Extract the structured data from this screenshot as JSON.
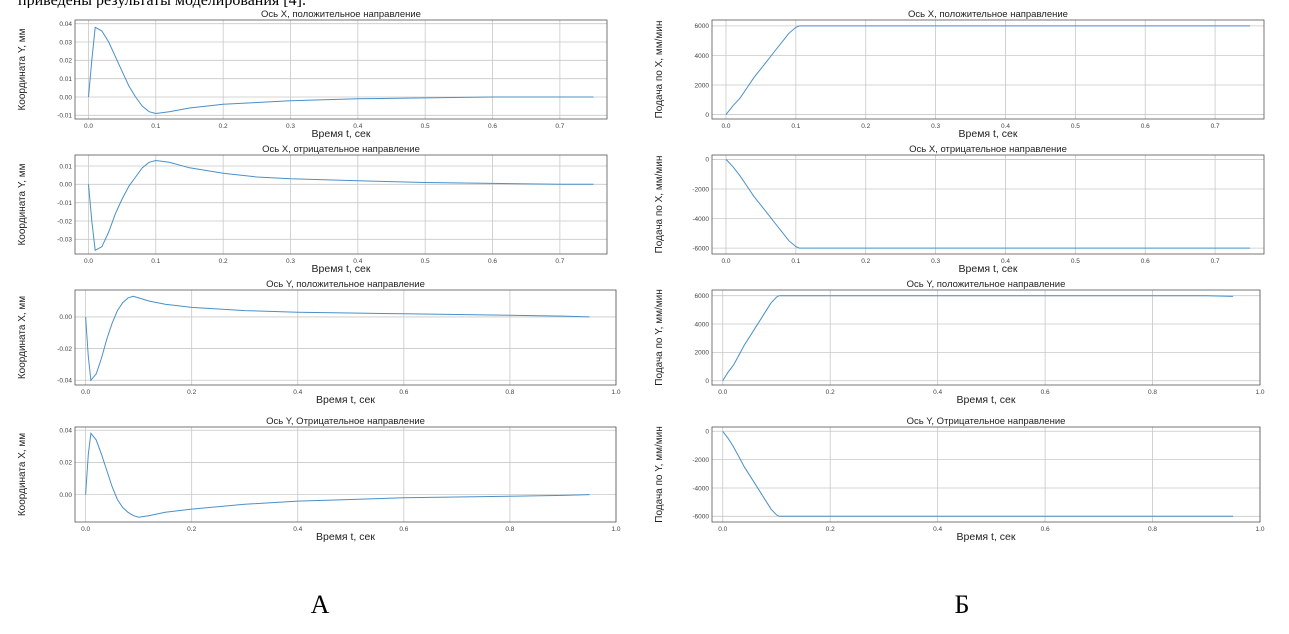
{
  "caption_text": "приведены результаты моделирования [4].",
  "panel_labels": [
    "А",
    "Б"
  ],
  "line_color": "#4a90c8",
  "chart_data": [
    {
      "type": "line",
      "panel": "А",
      "title": "Ось X, положительное направление",
      "xlabel": "Время t, сек",
      "ylabel": "Координата Y, мм",
      "xlim": [
        -0.02,
        0.77
      ],
      "ylim": [
        -0.012,
        0.042
      ],
      "xticks": [
        0.0,
        0.1,
        0.2,
        0.3,
        0.4,
        0.5,
        0.6,
        0.7
      ],
      "xtick_labels": [
        "0.0",
        "0.1",
        "0.2",
        "0.3",
        "0.4",
        "0.5",
        "0.6",
        "0.7"
      ],
      "yticks": [
        -0.01,
        0.0,
        0.01,
        0.02,
        0.03,
        0.04
      ],
      "ytick_labels": [
        "-0.01",
        "0.00",
        "0.01",
        "0.02",
        "0.03",
        "0.04"
      ],
      "grid": true,
      "series": [
        {
          "x": [
            0.0,
            0.005,
            0.01,
            0.02,
            0.03,
            0.04,
            0.05,
            0.06,
            0.07,
            0.08,
            0.09,
            0.1,
            0.12,
            0.15,
            0.2,
            0.25,
            0.3,
            0.4,
            0.5,
            0.6,
            0.7,
            0.75
          ],
          "y": [
            0.0,
            0.02,
            0.038,
            0.036,
            0.03,
            0.022,
            0.014,
            0.006,
            0.0,
            -0.005,
            -0.008,
            -0.009,
            -0.008,
            -0.006,
            -0.004,
            -0.003,
            -0.002,
            -0.001,
            -0.0005,
            0.0,
            0.0,
            0.0
          ]
        }
      ]
    },
    {
      "type": "line",
      "panel": "А",
      "title": "Ось X, отрицательное направление",
      "xlabel": "Время t, сек",
      "ylabel": "Координата Y, мм",
      "xlim": [
        -0.02,
        0.77
      ],
      "ylim": [
        -0.038,
        0.016
      ],
      "xticks": [
        0.0,
        0.1,
        0.2,
        0.3,
        0.4,
        0.5,
        0.6,
        0.7
      ],
      "xtick_labels": [
        "0.0",
        "0.1",
        "0.2",
        "0.3",
        "0.4",
        "0.5",
        "0.6",
        "0.7"
      ],
      "yticks": [
        -0.03,
        -0.02,
        -0.01,
        0.0,
        0.01
      ],
      "ytick_labels": [
        "-0.03",
        "-0.02",
        "-0.01",
        "0.00",
        "0.01"
      ],
      "grid": true,
      "series": [
        {
          "x": [
            0.0,
            0.005,
            0.01,
            0.02,
            0.03,
            0.04,
            0.05,
            0.06,
            0.07,
            0.08,
            0.09,
            0.1,
            0.12,
            0.15,
            0.2,
            0.25,
            0.3,
            0.4,
            0.5,
            0.6,
            0.7,
            0.75
          ],
          "y": [
            0.0,
            -0.02,
            -0.036,
            -0.034,
            -0.026,
            -0.016,
            -0.008,
            -0.001,
            0.004,
            0.009,
            0.012,
            0.013,
            0.012,
            0.009,
            0.006,
            0.004,
            0.003,
            0.002,
            0.001,
            0.0005,
            0.0,
            0.0
          ]
        }
      ]
    },
    {
      "type": "line",
      "panel": "А",
      "title": "Ось Y, положительное направление",
      "xlabel": "Время t, сек",
      "ylabel": "Координата X, мм",
      "xlim": [
        -0.02,
        1.0
      ],
      "ylim": [
        -0.043,
        0.017
      ],
      "xticks": [
        0.0,
        0.2,
        0.4,
        0.6,
        0.8,
        1.0
      ],
      "xtick_labels": [
        "0.0",
        "0.2",
        "0.4",
        "0.6",
        "0.8",
        "1.0"
      ],
      "yticks": [
        -0.04,
        -0.02,
        0.0
      ],
      "ytick_labels": [
        "-0.04",
        "-0.02",
        "0.00"
      ],
      "grid": true,
      "series": [
        {
          "x": [
            0.0,
            0.005,
            0.01,
            0.02,
            0.03,
            0.04,
            0.05,
            0.06,
            0.07,
            0.08,
            0.09,
            0.1,
            0.12,
            0.15,
            0.2,
            0.3,
            0.4,
            0.5,
            0.6,
            0.7,
            0.8,
            0.9,
            0.95
          ],
          "y": [
            0.0,
            -0.025,
            -0.04,
            -0.036,
            -0.026,
            -0.014,
            -0.004,
            0.004,
            0.009,
            0.012,
            0.013,
            0.012,
            0.01,
            0.008,
            0.006,
            0.004,
            0.003,
            0.0025,
            0.002,
            0.0015,
            0.001,
            0.0005,
            0.0
          ]
        }
      ]
    },
    {
      "type": "line",
      "panel": "А",
      "title": "Ось Y, Отрицательное направление",
      "xlabel": "Время t, сек",
      "ylabel": "Координата X, мм",
      "xlim": [
        -0.02,
        1.0
      ],
      "ylim": [
        -0.017,
        0.042
      ],
      "xticks": [
        0.0,
        0.2,
        0.4,
        0.6,
        0.8,
        1.0
      ],
      "xtick_labels": [
        "0.0",
        "0.2",
        "0.4",
        "0.6",
        "0.8",
        "1.0"
      ],
      "yticks": [
        0.0,
        0.02,
        0.04
      ],
      "ytick_labels": [
        "0.00",
        "0.02",
        "0.04"
      ],
      "grid": true,
      "series": [
        {
          "x": [
            0.0,
            0.005,
            0.01,
            0.02,
            0.03,
            0.04,
            0.05,
            0.06,
            0.07,
            0.08,
            0.09,
            0.1,
            0.12,
            0.15,
            0.2,
            0.3,
            0.4,
            0.5,
            0.6,
            0.7,
            0.8,
            0.9,
            0.95
          ],
          "y": [
            0.0,
            0.025,
            0.038,
            0.034,
            0.025,
            0.015,
            0.005,
            -0.003,
            -0.008,
            -0.011,
            -0.013,
            -0.014,
            -0.013,
            -0.011,
            -0.009,
            -0.006,
            -0.004,
            -0.003,
            -0.002,
            -0.0015,
            -0.001,
            -0.0005,
            0.0
          ]
        }
      ]
    },
    {
      "type": "line",
      "panel": "Б",
      "title": "Ось X, положительное направление",
      "xlabel": "Время t, сек",
      "ylabel": "Подача по X, мм/мин",
      "xlim": [
        -0.02,
        0.77
      ],
      "ylim": [
        -300,
        6400
      ],
      "xticks": [
        0.0,
        0.1,
        0.2,
        0.3,
        0.4,
        0.5,
        0.6,
        0.7
      ],
      "xtick_labels": [
        "0.0",
        "0.1",
        "0.2",
        "0.3",
        "0.4",
        "0.5",
        "0.6",
        "0.7"
      ],
      "yticks": [
        0,
        2000,
        4000,
        6000
      ],
      "ytick_labels": [
        "0",
        "2000",
        "4000",
        "6000"
      ],
      "grid": true,
      "series": [
        {
          "x": [
            0.0,
            0.01,
            0.02,
            0.03,
            0.04,
            0.05,
            0.06,
            0.07,
            0.08,
            0.09,
            0.1,
            0.105,
            0.12,
            0.2,
            0.3,
            0.4,
            0.5,
            0.6,
            0.7,
            0.75
          ],
          "y": [
            0,
            600,
            1100,
            1800,
            2500,
            3100,
            3700,
            4300,
            4900,
            5500,
            5900,
            6000,
            6000,
            6000,
            6000,
            6000,
            6000,
            6000,
            6000,
            6000
          ]
        }
      ]
    },
    {
      "type": "line",
      "panel": "Б",
      "title": "Ось X, отрицательное направление",
      "xlabel": "Время t, сек",
      "ylabel": "Подача по X, мм/мин",
      "xlim": [
        -0.02,
        0.77
      ],
      "ylim": [
        -6400,
        300
      ],
      "xticks": [
        0.0,
        0.1,
        0.2,
        0.3,
        0.4,
        0.5,
        0.6,
        0.7
      ],
      "xtick_labels": [
        "0.0",
        "0.1",
        "0.2",
        "0.3",
        "0.4",
        "0.5",
        "0.6",
        "0.7"
      ],
      "yticks": [
        0,
        -2000,
        -4000,
        -6000
      ],
      "ytick_labels": [
        "0",
        "-2000",
        "-4000",
        "-6000"
      ],
      "grid": true,
      "series": [
        {
          "x": [
            0.0,
            0.01,
            0.02,
            0.03,
            0.04,
            0.05,
            0.06,
            0.07,
            0.08,
            0.09,
            0.1,
            0.105,
            0.12,
            0.2,
            0.3,
            0.4,
            0.5,
            0.6,
            0.7,
            0.75
          ],
          "y": [
            0,
            -500,
            -1100,
            -1800,
            -2500,
            -3100,
            -3700,
            -4300,
            -4900,
            -5500,
            -5900,
            -6000,
            -6000,
            -6000,
            -6000,
            -6000,
            -6000,
            -6000,
            -6000,
            -6000
          ]
        }
      ]
    },
    {
      "type": "line",
      "panel": "Б",
      "title": "Ось Y, положительное направление",
      "xlabel": "Время t, сек",
      "ylabel": "Подача по Y, мм/мин",
      "xlim": [
        -0.02,
        1.0
      ],
      "ylim": [
        -300,
        6400
      ],
      "xticks": [
        0.0,
        0.2,
        0.4,
        0.6,
        0.8,
        1.0
      ],
      "xtick_labels": [
        "0.0",
        "0.2",
        "0.4",
        "0.6",
        "0.8",
        "1.0"
      ],
      "yticks": [
        0,
        2000,
        4000,
        6000
      ],
      "ytick_labels": [
        "0",
        "2000",
        "4000",
        "6000"
      ],
      "grid": true,
      "series": [
        {
          "x": [
            0.0,
            0.01,
            0.02,
            0.03,
            0.04,
            0.05,
            0.06,
            0.07,
            0.08,
            0.09,
            0.1,
            0.105,
            0.12,
            0.2,
            0.3,
            0.4,
            0.5,
            0.6,
            0.7,
            0.8,
            0.9,
            0.95
          ],
          "y": [
            0,
            600,
            1100,
            1800,
            2500,
            3100,
            3700,
            4300,
            4900,
            5500,
            5900,
            6000,
            6000,
            6000,
            6000,
            6000,
            6000,
            6000,
            6000,
            6000,
            6000,
            5950
          ]
        }
      ]
    },
    {
      "type": "line",
      "panel": "Б",
      "title": "Ось Y, Отрицательное направление",
      "xlabel": "Время t, сек",
      "ylabel": "Подача по Y, мм/мин",
      "xlim": [
        -0.02,
        1.0
      ],
      "ylim": [
        -6400,
        300
      ],
      "xticks": [
        0.0,
        0.2,
        0.4,
        0.6,
        0.8,
        1.0
      ],
      "xtick_labels": [
        "0.0",
        "0.2",
        "0.4",
        "0.6",
        "0.8",
        "1.0"
      ],
      "yticks": [
        0,
        -2000,
        -4000,
        -6000
      ],
      "ytick_labels": [
        "0",
        "-2000",
        "-4000",
        "-6000"
      ],
      "grid": true,
      "series": [
        {
          "x": [
            0.0,
            0.01,
            0.02,
            0.03,
            0.04,
            0.05,
            0.06,
            0.07,
            0.08,
            0.09,
            0.1,
            0.105,
            0.12,
            0.2,
            0.3,
            0.4,
            0.5,
            0.6,
            0.7,
            0.8,
            0.9,
            0.95
          ],
          "y": [
            0,
            -500,
            -1100,
            -1800,
            -2500,
            -3100,
            -3700,
            -4300,
            -4900,
            -5500,
            -5900,
            -6000,
            -6000,
            -6000,
            -6000,
            -6000,
            -6000,
            -6000,
            -6000,
            -6000,
            -6000,
            -6000
          ]
        }
      ]
    }
  ]
}
